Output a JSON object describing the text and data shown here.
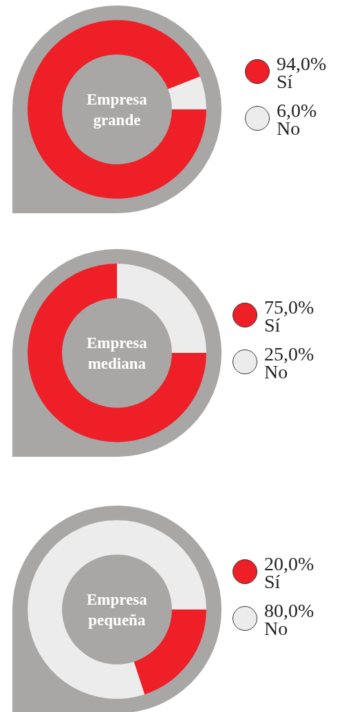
{
  "chart_data": [
    {
      "type": "donut",
      "title": "Empresa grande",
      "categories": [
        "Sí",
        "No"
      ],
      "values": [
        94,
        6
      ],
      "colors": [
        "#ee1f26",
        "#ececec"
      ],
      "value_labels": [
        "94,0%",
        "6,0%"
      ],
      "legend": "right"
    },
    {
      "type": "donut",
      "title": "Empresa mediana",
      "categories": [
        "Sí",
        "No"
      ],
      "values": [
        75,
        25
      ],
      "colors": [
        "#ee1f26",
        "#ececec"
      ],
      "value_labels": [
        "75,0%",
        "25,0%"
      ],
      "legend": "right"
    },
    {
      "type": "donut",
      "title": "Empresa pequeña",
      "categories": [
        "Sí",
        "No"
      ],
      "values": [
        20,
        80
      ],
      "colors": [
        "#ee1f26",
        "#ececec"
      ],
      "value_labels": [
        "20,0%",
        "80,0%"
      ],
      "legend": "right"
    }
  ]
}
